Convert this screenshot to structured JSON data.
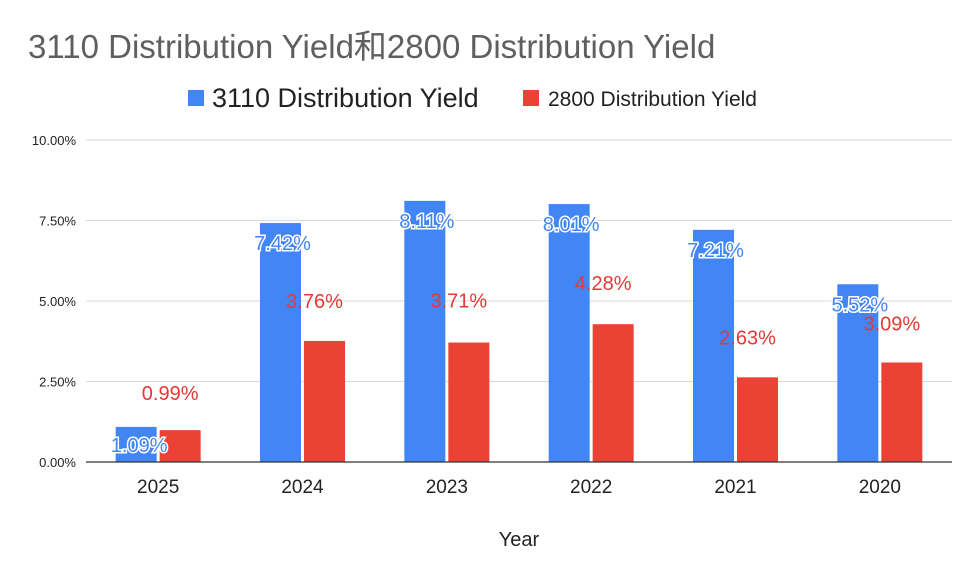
{
  "chart_data": {
    "type": "bar",
    "title": "3110 Distribution Yield和2800 Distribution Yield",
    "xlabel": "Year",
    "ylabel": "",
    "categories": [
      "2025",
      "2024",
      "2023",
      "2022",
      "2021",
      "2020"
    ],
    "series": [
      {
        "name": "3110 Distribution Yield",
        "color": "#4285f4",
        "values": [
          1.09,
          7.42,
          8.11,
          8.01,
          7.21,
          5.52
        ],
        "labels": [
          "1.09%",
          "7.42%",
          "8.11%",
          "8.01%",
          "7.21%",
          "5.52%"
        ]
      },
      {
        "name": "2800 Distribution Yield",
        "color": "#ea4335",
        "values": [
          0.99,
          3.76,
          3.71,
          4.28,
          2.63,
          3.09
        ],
        "labels": [
          "0.99%",
          "3.76%",
          "3.71%",
          "4.28%",
          "2.63%",
          "3.09%"
        ]
      }
    ],
    "ylim": [
      0,
      10
    ],
    "yticks": [
      0,
      2.5,
      5,
      7.5,
      10
    ],
    "ytick_labels": [
      "0.00%",
      "2.50%",
      "5.00%",
      "7.50%",
      "10.00%"
    ],
    "grid": true,
    "legend": "top"
  }
}
